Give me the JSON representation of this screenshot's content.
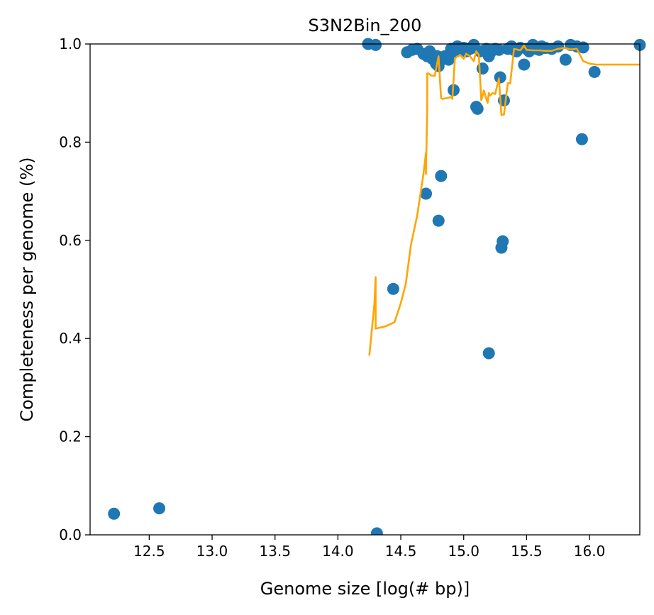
{
  "chart_data": {
    "type": "scatter",
    "title": "S3N2Bin_200",
    "xlabel": "Genome size [log(# bp)]",
    "ylabel": "Completeness per genome (%)",
    "xlim": [
      12.03,
      16.4
    ],
    "ylim": [
      0.0,
      1.0
    ],
    "xticks": [
      12.5,
      13.0,
      13.5,
      14.0,
      14.5,
      15.0,
      15.5,
      16.0
    ],
    "xtick_labels": [
      "12.5",
      "13.0",
      "13.5",
      "14.0",
      "14.5",
      "15.0",
      "15.5",
      "16.0"
    ],
    "yticks": [
      0.0,
      0.2,
      0.4,
      0.6,
      0.8,
      1.0
    ],
    "ytick_labels": [
      "0.0",
      "0.2",
      "0.4",
      "0.6",
      "0.8",
      "1.0"
    ],
    "grid": false,
    "colors": {
      "points": "#1f77b4",
      "trend": "#ffa500"
    },
    "series": [
      {
        "kind": "scatter",
        "x": [
          12.22,
          12.58,
          14.24,
          14.3,
          14.31,
          14.44,
          14.55,
          14.59,
          14.63,
          14.68,
          14.7,
          14.71,
          14.73,
          14.75,
          14.78,
          14.79,
          14.8,
          14.8,
          14.81,
          14.82,
          14.85,
          14.88,
          14.9,
          14.92,
          14.93,
          14.95,
          14.97,
          15.0,
          15.02,
          15.05,
          15.08,
          15.1,
          15.11,
          15.13,
          15.15,
          15.18,
          15.2,
          15.2,
          15.22,
          15.25,
          15.28,
          15.29,
          15.3,
          15.31,
          15.32,
          15.35,
          15.38,
          15.4,
          15.42,
          15.45,
          15.48,
          15.5,
          15.52,
          15.55,
          15.58,
          15.6,
          15.62,
          15.65,
          15.7,
          15.75,
          15.81,
          15.85,
          15.9,
          15.94,
          15.95,
          16.04,
          16.4
        ],
        "y": [
          0.043,
          0.054,
          1.0,
          0.998,
          0.003,
          0.501,
          0.983,
          0.988,
          0.99,
          0.98,
          0.695,
          0.975,
          0.985,
          0.97,
          0.96,
          0.975,
          0.64,
          0.955,
          0.965,
          0.731,
          0.975,
          0.968,
          0.99,
          0.906,
          0.985,
          0.995,
          0.988,
          0.992,
          0.985,
          0.99,
          0.998,
          0.872,
          0.868,
          0.985,
          0.95,
          0.99,
          0.37,
          0.975,
          0.985,
          0.99,
          0.988,
          0.932,
          0.585,
          0.598,
          0.885,
          0.99,
          0.995,
          0.988,
          0.985,
          0.992,
          0.958,
          0.99,
          0.985,
          0.998,
          0.99,
          0.988,
          0.995,
          0.992,
          0.99,
          0.995,
          0.968,
          0.998,
          0.995,
          0.806,
          0.993,
          0.943,
          0.998
        ]
      },
      {
        "kind": "line",
        "x": [
          14.25,
          14.29,
          14.3,
          14.3,
          14.38,
          14.45,
          14.5,
          14.54,
          14.58,
          14.63,
          14.68,
          14.7,
          14.7,
          14.71,
          14.71,
          14.72,
          14.74,
          14.77,
          14.8,
          14.82,
          14.83,
          14.87,
          14.9,
          14.91,
          14.93,
          14.95,
          14.96,
          14.97,
          15.0,
          15.02,
          15.05,
          15.08,
          15.1,
          15.12,
          15.14,
          15.16,
          15.19,
          15.2,
          15.21,
          15.23,
          15.25,
          15.28,
          15.3,
          15.31,
          15.32,
          15.35,
          15.37,
          15.4,
          15.45,
          15.48,
          15.5,
          15.55,
          15.6,
          15.65,
          15.7,
          15.75,
          15.8,
          15.85,
          15.9,
          15.95,
          16.0,
          16.05,
          16.1,
          16.2,
          16.3,
          16.4
        ],
        "y": [
          0.365,
          0.47,
          0.525,
          0.42,
          0.425,
          0.433,
          0.472,
          0.512,
          0.59,
          0.65,
          0.735,
          0.778,
          0.735,
          0.87,
          0.94,
          0.94,
          0.936,
          0.935,
          0.975,
          0.89,
          0.888,
          0.89,
          0.892,
          0.888,
          0.97,
          0.975,
          0.975,
          0.978,
          0.97,
          0.98,
          0.975,
          0.965,
          0.985,
          0.978,
          0.885,
          0.905,
          0.88,
          0.9,
          0.895,
          0.9,
          0.898,
          0.93,
          0.855,
          0.856,
          0.856,
          0.92,
          0.92,
          0.99,
          0.987,
          0.997,
          0.988,
          0.987,
          0.987,
          0.986,
          0.986,
          0.99,
          0.992,
          0.989,
          0.99,
          0.965,
          0.96,
          0.958,
          0.958,
          0.958,
          0.958,
          0.958
        ]
      }
    ]
  }
}
